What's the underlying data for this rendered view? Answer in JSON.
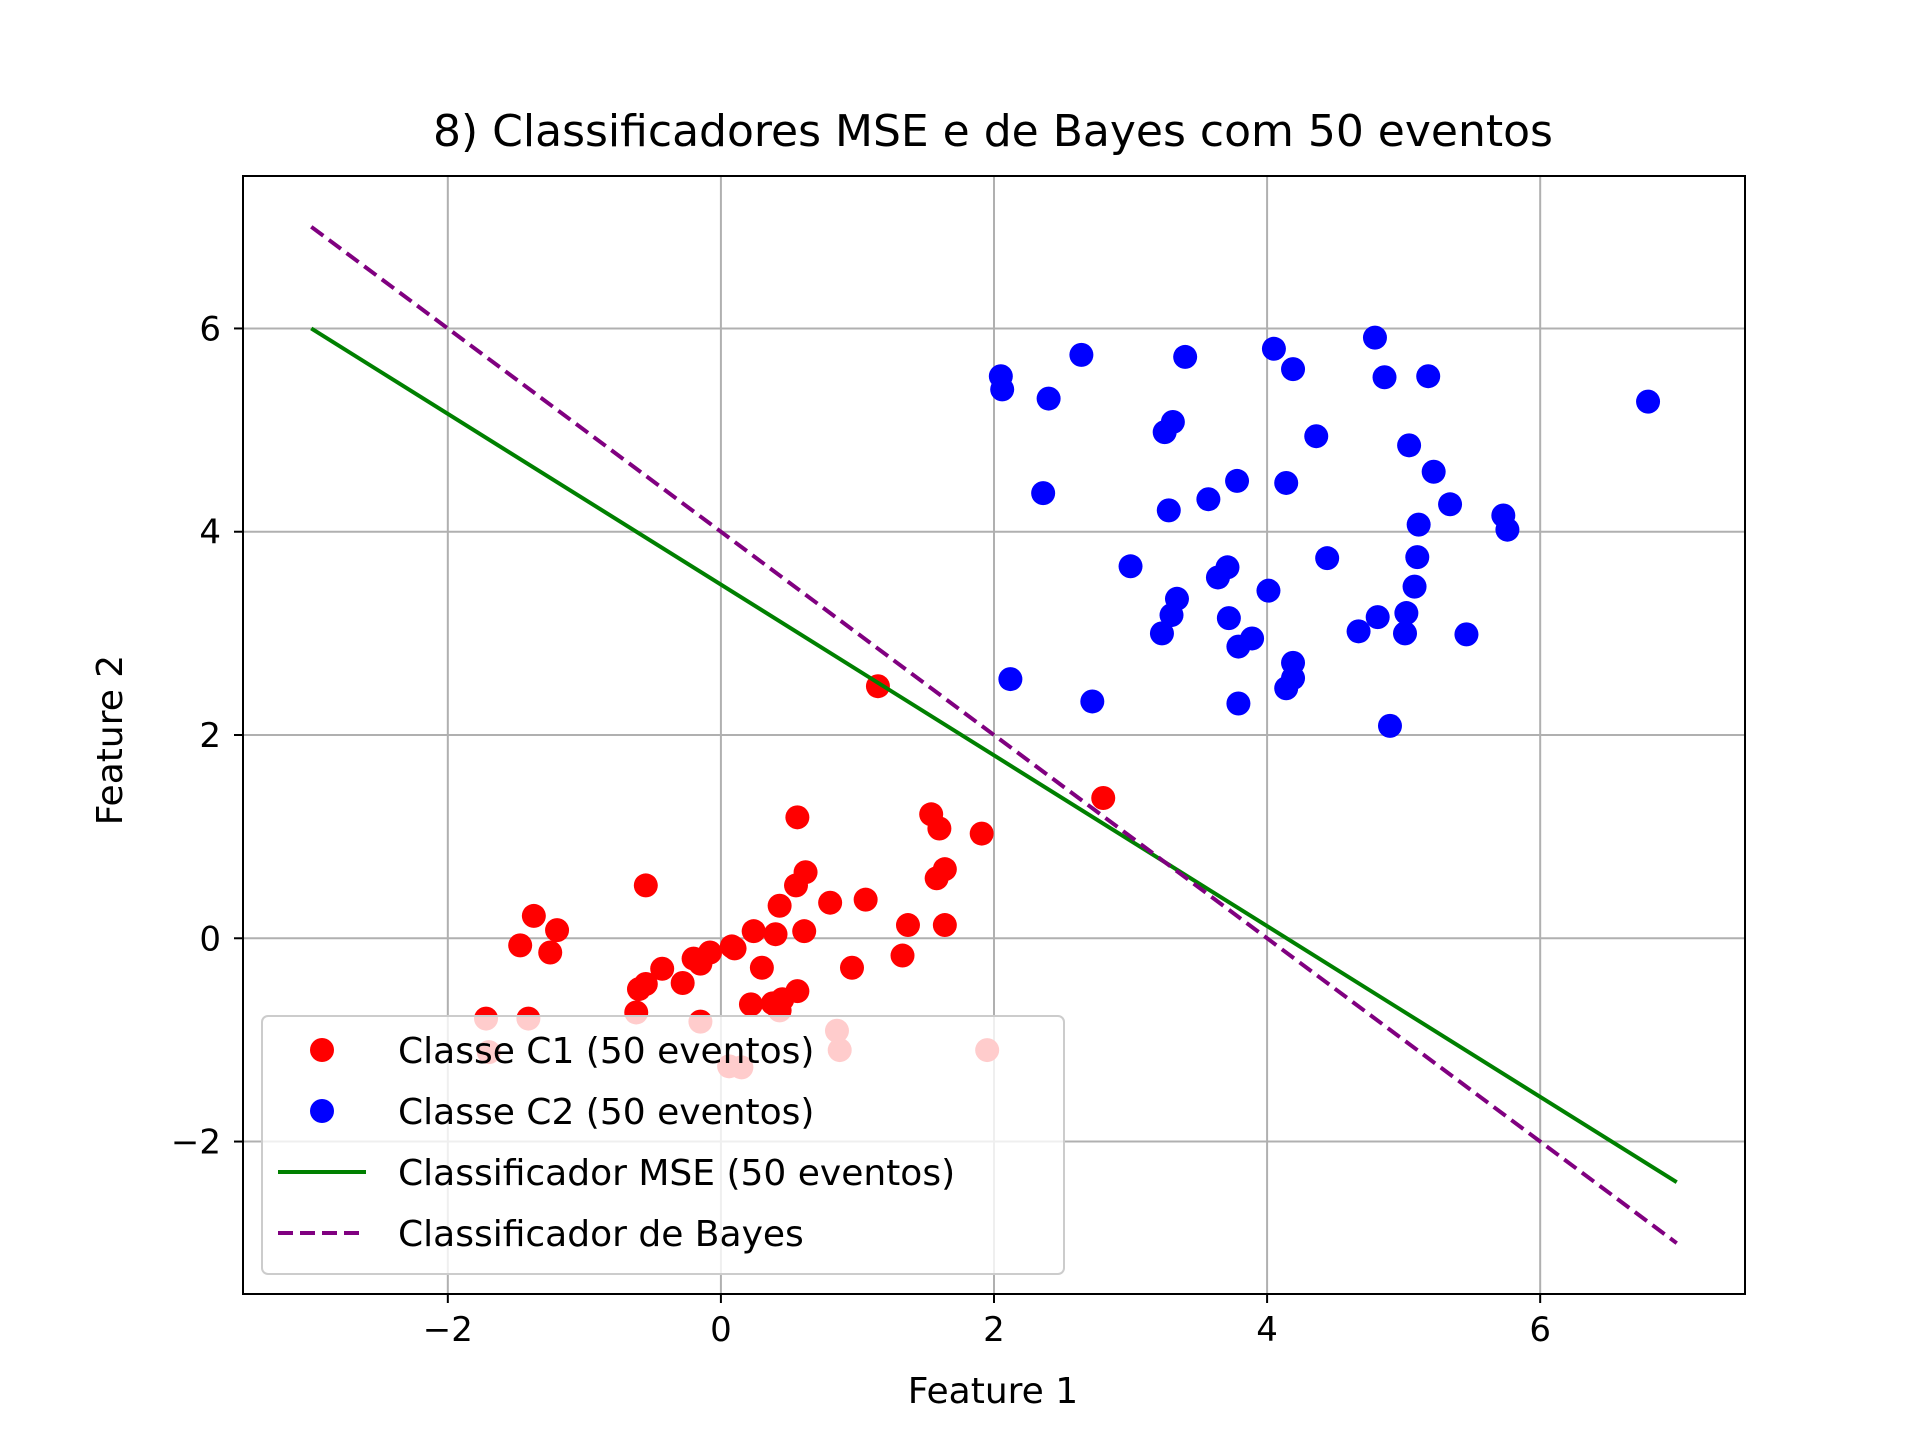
{
  "chart_data": {
    "type": "scatter",
    "title": "8) Classificadores MSE e de Bayes com 50 eventos",
    "xlabel": "Feature 1",
    "ylabel": "Feature 2",
    "xlim": [
      -3.5,
      7.5
    ],
    "ylim": [
      -3.5,
      7.5
    ],
    "xticks": [
      -2,
      0,
      2,
      4,
      6
    ],
    "yticks": [
      -2,
      0,
      2,
      4,
      6
    ],
    "xtick_labels": [
      "−2",
      "0",
      "2",
      "4",
      "6"
    ],
    "ytick_labels": [
      "−2",
      "0",
      "2",
      "4",
      "6"
    ],
    "grid": true,
    "legend_position": "lower-left",
    "series": [
      {
        "name": "Classe C1 (50 eventos)",
        "kind": "scatter",
        "color": "#ff0000",
        "points": [
          [
            1.15,
            2.48
          ],
          [
            2.8,
            1.38
          ],
          [
            0.56,
            1.19
          ],
          [
            1.54,
            1.22
          ],
          [
            1.6,
            1.08
          ],
          [
            1.91,
            1.03
          ],
          [
            0.62,
            0.65
          ],
          [
            1.64,
            0.68
          ],
          [
            1.58,
            0.59
          ],
          [
            0.55,
            0.52
          ],
          [
            -0.55,
            0.52
          ],
          [
            1.06,
            0.38
          ],
          [
            0.8,
            0.35
          ],
          [
            0.43,
            0.32
          ],
          [
            -1.37,
            0.22
          ],
          [
            1.37,
            0.13
          ],
          [
            1.64,
            0.13
          ],
          [
            -1.2,
            0.08
          ],
          [
            0.24,
            0.07
          ],
          [
            0.61,
            0.07
          ],
          [
            0.4,
            0.04
          ],
          [
            -1.47,
            -0.07
          ],
          [
            -1.25,
            -0.14
          ],
          [
            0.08,
            -0.08
          ],
          [
            -0.08,
            -0.14
          ],
          [
            1.33,
            -0.17
          ],
          [
            -0.15,
            -0.25
          ],
          [
            0.3,
            -0.29
          ],
          [
            0.96,
            -0.29
          ],
          [
            -0.43,
            -0.3
          ],
          [
            -0.28,
            -0.44
          ],
          [
            -0.6,
            -0.5
          ],
          [
            0.56,
            -0.52
          ],
          [
            0.22,
            -0.65
          ],
          [
            0.38,
            -0.64
          ],
          [
            0.43,
            -0.71
          ],
          [
            -0.62,
            -0.73
          ],
          [
            -1.72,
            -0.79
          ],
          [
            -1.41,
            -0.79
          ],
          [
            -0.15,
            -0.82
          ],
          [
            0.85,
            -0.91
          ],
          [
            -1.7,
            -1.12
          ],
          [
            0.87,
            -1.1
          ],
          [
            1.95,
            -1.1
          ],
          [
            0.06,
            -1.26
          ],
          [
            0.15,
            -1.27
          ],
          [
            -0.2,
            -0.2
          ],
          [
            0.1,
            -0.1
          ],
          [
            0.45,
            -0.6
          ],
          [
            -0.55,
            -0.45
          ]
        ]
      },
      {
        "name": "Classe C2 (50 eventos)",
        "kind": "scatter",
        "color": "#0000ff",
        "points": [
          [
            4.79,
            5.91
          ],
          [
            4.05,
            5.8
          ],
          [
            2.64,
            5.74
          ],
          [
            3.4,
            5.72
          ],
          [
            4.19,
            5.6
          ],
          [
            5.18,
            5.53
          ],
          [
            2.05,
            5.53
          ],
          [
            4.86,
            5.52
          ],
          [
            2.06,
            5.4
          ],
          [
            2.4,
            5.31
          ],
          [
            6.79,
            5.28
          ],
          [
            3.31,
            5.08
          ],
          [
            3.25,
            4.98
          ],
          [
            4.36,
            4.94
          ],
          [
            5.04,
            4.85
          ],
          [
            5.22,
            4.59
          ],
          [
            3.78,
            4.5
          ],
          [
            4.14,
            4.48
          ],
          [
            2.36,
            4.38
          ],
          [
            3.57,
            4.32
          ],
          [
            5.34,
            4.27
          ],
          [
            3.28,
            4.21
          ],
          [
            5.73,
            4.16
          ],
          [
            5.11,
            4.07
          ],
          [
            5.76,
            4.02
          ],
          [
            5.1,
            3.75
          ],
          [
            4.44,
            3.74
          ],
          [
            3.0,
            3.66
          ],
          [
            3.71,
            3.65
          ],
          [
            3.64,
            3.55
          ],
          [
            5.08,
            3.46
          ],
          [
            4.01,
            3.42
          ],
          [
            3.34,
            3.34
          ],
          [
            5.02,
            3.2
          ],
          [
            3.72,
            3.15
          ],
          [
            4.81,
            3.16
          ],
          [
            3.3,
            3.18
          ],
          [
            4.67,
            3.02
          ],
          [
            5.01,
            3.0
          ],
          [
            3.23,
            3.0
          ],
          [
            5.46,
            2.99
          ],
          [
            3.89,
            2.95
          ],
          [
            3.79,
            2.87
          ],
          [
            4.19,
            2.71
          ],
          [
            4.19,
            2.56
          ],
          [
            2.12,
            2.55
          ],
          [
            4.14,
            2.46
          ],
          [
            2.72,
            2.33
          ],
          [
            3.79,
            2.31
          ],
          [
            4.9,
            2.09
          ]
        ]
      },
      {
        "name": "Classificador MSE (50 eventos)",
        "kind": "line",
        "color": "#008000",
        "style": "solid",
        "x": [
          -3,
          7
        ],
        "y": [
          6.0,
          -2.4
        ]
      },
      {
        "name": "Classificador de Bayes",
        "kind": "line",
        "color": "#800080",
        "style": "dashed",
        "x": [
          -3,
          7
        ],
        "y": [
          7.0,
          -3.0
        ]
      }
    ]
  }
}
